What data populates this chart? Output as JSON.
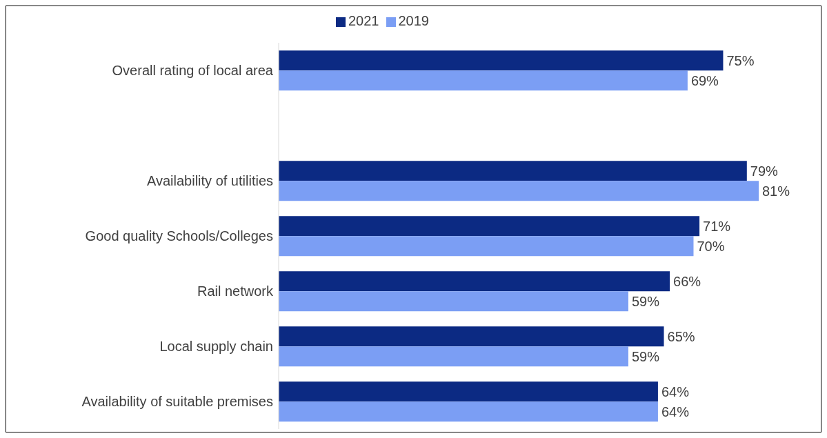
{
  "chart_data": {
    "type": "bar",
    "orientation": "horizontal",
    "categories": [
      "Overall rating of local area",
      null,
      "Availability of utilities",
      "Good quality Schools/Colleges",
      "Rail network",
      "Local supply chain",
      "Availability of suitable premises"
    ],
    "series": [
      {
        "name": "2021",
        "color": "#0c2a83",
        "values": [
          75,
          null,
          79,
          71,
          66,
          65,
          64
        ],
        "value_labels": [
          "75%",
          null,
          "79%",
          "71%",
          "66%",
          "65%",
          "64%"
        ]
      },
      {
        "name": "2019",
        "color": "#7b9ef4",
        "values": [
          69,
          null,
          81,
          70,
          59,
          59,
          64
        ],
        "value_labels": [
          "69%",
          null,
          "81%",
          "70%",
          "59%",
          "59%",
          "64%"
        ]
      }
    ],
    "legend": "top",
    "grid": false
  }
}
